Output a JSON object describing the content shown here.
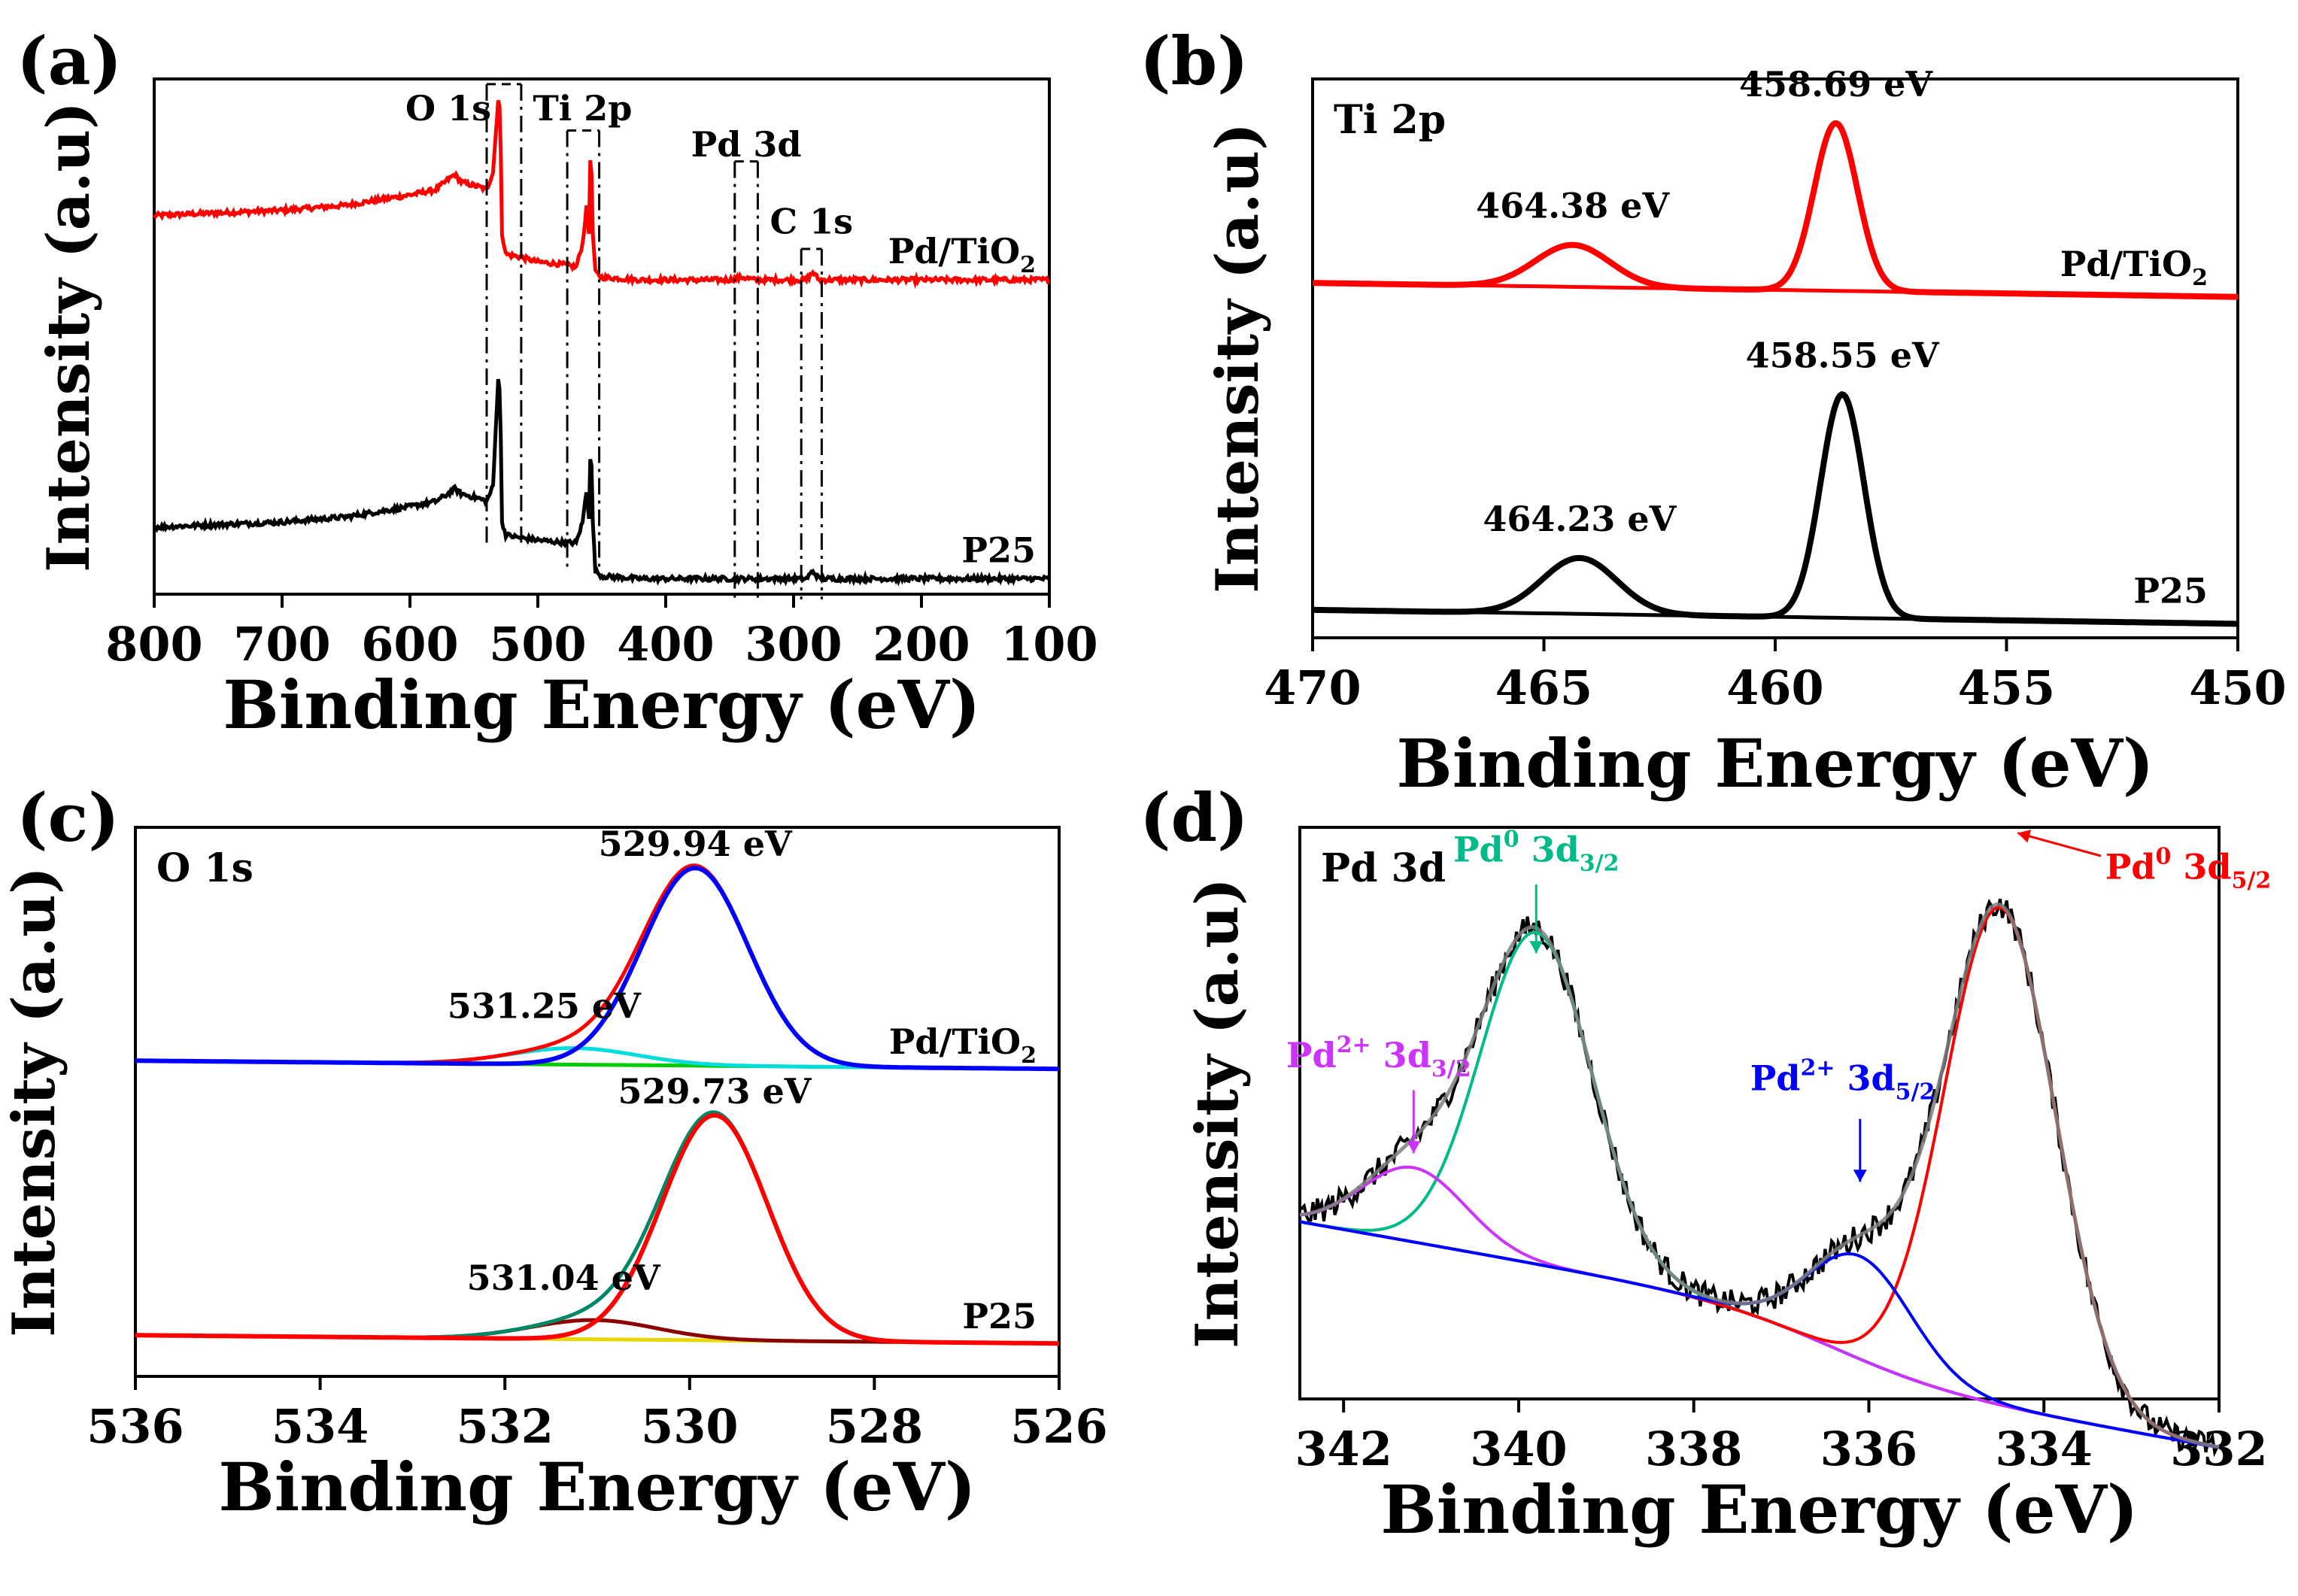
{
  "figure": {
    "panels": [
      {
        "id": "a",
        "label": "(a)"
      },
      {
        "id": "b",
        "label": "(b)"
      },
      {
        "id": "c",
        "label": "(c)"
      },
      {
        "id": "d",
        "label": "(d)"
      }
    ]
  },
  "chart_data": [
    {
      "id": "a",
      "type": "line",
      "title": "",
      "xlabel": "Binding Energy (eV)",
      "ylabel": "Intensity (a.u)",
      "xlim": [
        800,
        100
      ],
      "ylim": [
        0,
        100
      ],
      "xticks": [
        800,
        700,
        600,
        500,
        400,
        300,
        200,
        100
      ],
      "regions": [
        {
          "name": "O 1s",
          "x_from": 540,
          "x_to": 513,
          "label": "O 1s",
          "label_x": 570
        },
        {
          "name": "Ti 2p",
          "x_from": 477,
          "x_to": 452,
          "label": "Ti 2p",
          "label_x": 465
        },
        {
          "name": "Pd 3d",
          "x_from": 346,
          "x_to": 328,
          "label": "Pd 3d",
          "label_x": 337
        },
        {
          "name": "C 1s",
          "x_from": 294,
          "x_to": 278,
          "label": "C 1s",
          "label_x": 286
        }
      ],
      "series": [
        {
          "name": "Pd/TiO2",
          "label": "Pd/TiO",
          "label_sub": "2",
          "color": "#ff0000",
          "baseline": 61,
          "x": [
            800,
            700,
            650,
            600,
            580,
            570,
            565,
            560,
            545,
            540,
            535,
            531,
            529.5,
            528,
            525,
            515,
            500,
            480,
            470,
            465,
            462,
            460,
            458.7,
            457,
            455,
            450,
            420,
            350,
            340,
            330,
            300,
            290,
            285,
            280,
            250,
            200,
            100
          ],
          "y": [
            73.5,
            74.5,
            75.5,
            77.5,
            78.5,
            80.5,
            81.5,
            80,
            79,
            78.5,
            82,
            96,
            94,
            70,
            66,
            65.5,
            64.5,
            64,
            63.5,
            68,
            75,
            70,
            89,
            70,
            62.5,
            61.5,
            61,
            61,
            61.5,
            61,
            61,
            61,
            62.5,
            61,
            61,
            61,
            61
          ]
        },
        {
          "name": "P25",
          "label": "P25",
          "label_sub": "",
          "color": "#000000",
          "baseline": 3,
          "x": [
            800,
            700,
            650,
            600,
            580,
            570,
            565,
            560,
            545,
            540,
            535,
            531,
            529.5,
            528,
            525,
            515,
            500,
            480,
            470,
            465,
            462,
            460,
            458.6,
            457,
            455,
            450,
            420,
            350,
            300,
            290,
            285,
            280,
            200,
            100
          ],
          "y": [
            13,
            14,
            15,
            17,
            18,
            19.5,
            20.5,
            19.5,
            18.5,
            18,
            21,
            42,
            39,
            14,
            11.5,
            11,
            10.5,
            10,
            10,
            14,
            20,
            15,
            31,
            14,
            4.5,
            3.5,
            3,
            3,
            3,
            3,
            4.5,
            3,
            3,
            3
          ]
        }
      ]
    },
    {
      "id": "b",
      "type": "line",
      "title": "Ti 2p",
      "xlabel": "Binding Energy (eV)",
      "ylabel": "Intensity (a.u)",
      "xlim": [
        470,
        450
      ],
      "ylim": [
        0,
        100
      ],
      "xticks": [
        470,
        465,
        460,
        455,
        450
      ],
      "series": [
        {
          "name": "Pd/TiO2",
          "label": "Pd/TiO",
          "label_sub": "2",
          "color": "#ff0000",
          "offset": 61,
          "peaks": [
            {
              "center": 458.69,
              "height": 30,
              "fwhm": 1.1,
              "label": "458.69 eV"
            },
            {
              "center": 464.38,
              "height": 7.5,
              "fwhm": 1.9,
              "label": "464.38 eV"
            }
          ]
        },
        {
          "name": "P25",
          "label": "P25",
          "label_sub": "",
          "color": "#000000",
          "offset": 2.5,
          "peaks": [
            {
              "center": 458.55,
              "height": 40,
              "fwhm": 1.1,
              "label": "458.55 eV"
            },
            {
              "center": 464.23,
              "height": 10,
              "fwhm": 1.9,
              "label": "464.23 eV"
            }
          ]
        }
      ]
    },
    {
      "id": "c",
      "type": "line",
      "title": "O 1s",
      "xlabel": "Binding Energy (eV)",
      "ylabel": "Intensity (a.u)",
      "xlim": [
        536,
        526
      ],
      "ylim": [
        0,
        100
      ],
      "xticks": [
        536,
        534,
        532,
        530,
        528,
        526
      ],
      "series": [
        {
          "name": "Pd/TiO2",
          "label": "Pd/TiO",
          "label_sub": "2",
          "offset": 56,
          "envelope_color": "#ff0000",
          "main_color": "#0000ff",
          "minor_color": "#00dddd",
          "base_color": "#00cc00",
          "peaks": [
            {
              "center": 529.94,
              "height": 36,
              "fwhm": 1.35,
              "label": "529.94 eV"
            },
            {
              "center": 531.25,
              "height": 3,
              "fwhm": 1.6,
              "label": "531.25 eV"
            }
          ]
        },
        {
          "name": "P25",
          "label": "P25",
          "label_sub": "",
          "offset": 6,
          "envelope_color": "#008866",
          "main_color": "#ff0000",
          "minor_color": "#8b0000",
          "base_color": "#e6d800",
          "peaks": [
            {
              "center": 529.73,
              "height": 41,
              "fwhm": 1.35,
              "label": "529.73 eV"
            },
            {
              "center": 531.04,
              "height": 3.5,
              "fwhm": 1.6,
              "label": "531.04 eV"
            }
          ]
        }
      ]
    },
    {
      "id": "d",
      "type": "line",
      "title": "Pd 3d",
      "xlabel": "Binding Energy (eV)",
      "ylabel": "Intensity (a.u)",
      "xlim": [
        342.5,
        332
      ],
      "ylim": [
        0,
        100
      ],
      "xticks": [
        342,
        340,
        338,
        336,
        334,
        332
      ],
      "background": {
        "start": 31,
        "end": 2.5,
        "step_x": 336.4,
        "step_height": 11,
        "step_width": 0.7,
        "color": "#0000ff"
      },
      "peaks": [
        {
          "name": "Pd0 3d3/2",
          "center": 339.8,
          "height": 58,
          "fwhm": 1.5,
          "color": "#00bb88",
          "label_base": "Pd",
          "label_sup": "0",
          "label_rest": " 3d",
          "label_sub": "3/2"
        },
        {
          "name": "Pd2+ 3d3/2",
          "center": 341.2,
          "height": 13,
          "fwhm": 1.4,
          "color": "#cc33ff",
          "label_base": "Pd",
          "label_sup": "2+",
          "label_rest": " 3d",
          "label_sub": "3/2"
        },
        {
          "name": "Pd0 3d5/2",
          "center": 334.5,
          "height": 87,
          "fwhm": 1.5,
          "color": "#ff0000",
          "label_base": "Pd",
          "label_sup": "0",
          "label_rest": " 3d",
          "label_sub": "5/2"
        },
        {
          "name": "Pd2+ 3d5/2",
          "center": 336.1,
          "height": 18,
          "fwhm": 1.4,
          "color": "#0000ff",
          "label_base": "Pd",
          "label_sup": "2+",
          "label_rest": " 3d",
          "label_sub": "5/2"
        }
      ],
      "envelope_color": "#808080",
      "raw_color": "#000000"
    }
  ]
}
